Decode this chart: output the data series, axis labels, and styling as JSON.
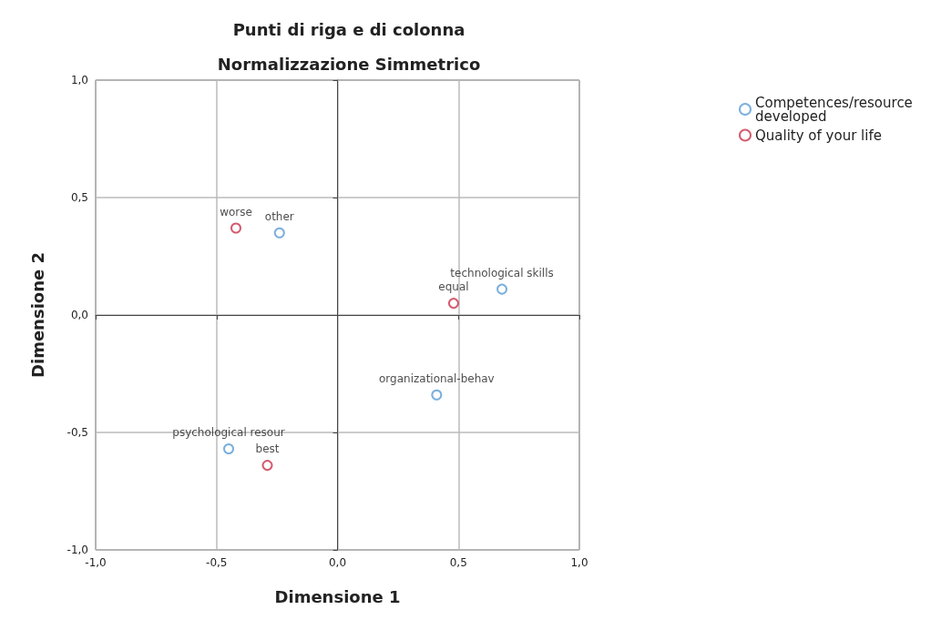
{
  "chart_data": {
    "type": "scatter",
    "title": "Punti di riga e di colonna",
    "subtitle": "Normalizzazione Simmetrico",
    "xlabel": "Dimensione 1",
    "ylabel": "Dimensione 2",
    "xlim": [
      -1,
      1
    ],
    "ylim": [
      -1,
      1
    ],
    "xticks": [
      {
        "value": -1,
        "label": "-1,0"
      },
      {
        "value": -0.5,
        "label": "-0,5"
      },
      {
        "value": 0,
        "label": "0,0"
      },
      {
        "value": 0.5,
        "label": "0,5"
      },
      {
        "value": 1,
        "label": "1,0"
      }
    ],
    "yticks": [
      {
        "value": -1,
        "label": "-1,0"
      },
      {
        "value": -0.5,
        "label": "-0,5"
      },
      {
        "value": 0,
        "label": "0,0"
      },
      {
        "value": 0.5,
        "label": "0,5"
      },
      {
        "value": 1,
        "label": "1,0"
      }
    ],
    "grid": true,
    "legend": "top right",
    "marker": "circle",
    "series": [
      {
        "name": "Competences/resource developed",
        "color": "#5b9bd5",
        "x": [
          -0.24,
          0.68,
          0.41,
          -0.45
        ],
        "values": [
          0.35,
          0.11,
          -0.34,
          -0.57
        ],
        "value_labels": [
          "other",
          "technological skills",
          "organizational-behav",
          "psychological resour"
        ]
      },
      {
        "name": "Quality of your life",
        "color": "#c8324b",
        "x": [
          -0.42,
          0.48,
          -0.29
        ],
        "values": [
          0.37,
          0.05,
          -0.64
        ],
        "value_labels": [
          "worse",
          "equal",
          "best"
        ]
      }
    ]
  }
}
